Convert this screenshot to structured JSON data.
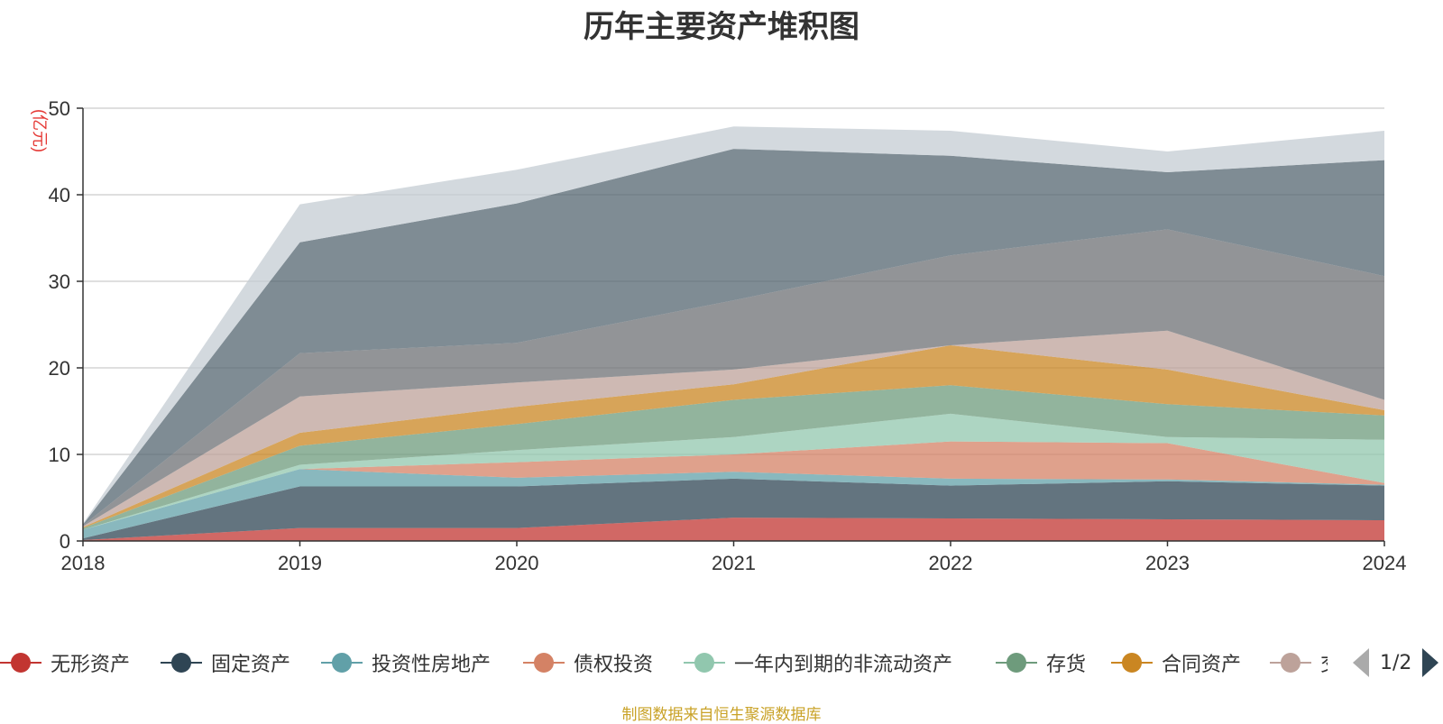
{
  "title": "历年主要资产堆积图",
  "source": "制图数据来自恒生聚源数据库",
  "pager": {
    "label": "1/2"
  },
  "chart_data": {
    "type": "area",
    "stacked": true,
    "title": "历年主要资产堆积图",
    "ylabel": "亿元",
    "xlabel": "",
    "x": [
      "2018",
      "2019",
      "2020",
      "2021",
      "2022",
      "2023",
      "2024"
    ],
    "ylim": [
      0,
      50
    ],
    "yticks": [
      0,
      10,
      20,
      30,
      40,
      50
    ],
    "grid": true,
    "legend_position": "bottom",
    "series": [
      {
        "name": "无形资产",
        "color": "#c23531",
        "values": [
          0.1,
          1.5,
          1.5,
          2.7,
          2.6,
          2.5,
          2.4
        ]
      },
      {
        "name": "固定资产",
        "color": "#2f4554",
        "values": [
          0.2,
          4.8,
          4.8,
          4.5,
          3.8,
          4.4,
          4.0
        ]
      },
      {
        "name": "投资性房地产",
        "color": "#61a0a8",
        "values": [
          1.0,
          2.0,
          1.0,
          0.8,
          0.8,
          0.2,
          0.1
        ]
      },
      {
        "name": "债权投资",
        "color": "#d48265",
        "values": [
          0.0,
          0.0,
          1.8,
          2.0,
          4.3,
          4.2,
          0.2
        ]
      },
      {
        "name": "一年内到期的非流动资产",
        "color": "#91c7ae",
        "values": [
          0.0,
          0.5,
          1.4,
          2.0,
          3.2,
          0.7,
          5.0
        ]
      },
      {
        "name": "存货",
        "color": "#6e9b7c",
        "values": [
          0.2,
          2.2,
          3.0,
          4.3,
          3.3,
          3.8,
          2.8
        ]
      },
      {
        "name": "合同资产",
        "color": "#ca8622",
        "values": [
          0.1,
          1.5,
          2.0,
          1.8,
          4.6,
          4.0,
          0.6
        ]
      },
      {
        "name": "交",
        "color": "#bda29a",
        "values": [
          0.1,
          4.2,
          2.8,
          1.7,
          0.0,
          4.5,
          1.2
        ]
      },
      {
        "name": "",
        "color": "#6e7074",
        "values": [
          0.1,
          5.0,
          4.6,
          8.0,
          10.4,
          11.7,
          14.3
        ]
      },
      {
        "name": "",
        "color": "#546570",
        "values": [
          0.1,
          12.8,
          16.1,
          17.5,
          11.5,
          6.6,
          13.4
        ]
      },
      {
        "name": "",
        "color": "#c4ccd3",
        "values": [
          0.1,
          4.4,
          3.9,
          2.6,
          2.9,
          2.4,
          3.4
        ]
      }
    ]
  }
}
